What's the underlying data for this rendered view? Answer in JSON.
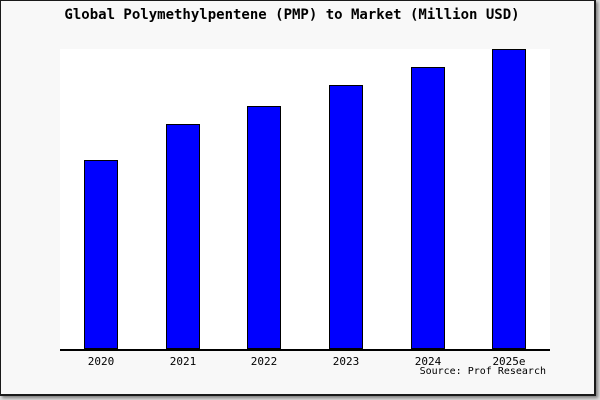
{
  "figure": {
    "title": "Global Polymethylpentene (PMP) to Market (Million USD)",
    "source_credit": "Source: Prof Research"
  },
  "colors": {
    "bar_fill": "#0000FF",
    "bar_border": "#000000",
    "plot_background": "#FFFFFF",
    "figure_background": "#F8F8F8",
    "axis": "#000000",
    "text": "#000000"
  },
  "chart_data": {
    "type": "bar",
    "title": "Global Polymethylpentene (PMP) to Market (Million USD)",
    "categories": [
      "2020",
      "2021",
      "2022",
      "2023",
      "2024",
      "2025e"
    ],
    "values": [
      63,
      75,
      81,
      88,
      94,
      100
    ],
    "value_scale": "relative units; no y-axis tick labels or gridlines are shown, values estimated with 2025e = 100",
    "xlabel": "",
    "ylabel": "",
    "ylim": [
      0,
      100
    ],
    "grid": false,
    "legend": false,
    "annotations": [
      "Source: Prof Research"
    ]
  }
}
